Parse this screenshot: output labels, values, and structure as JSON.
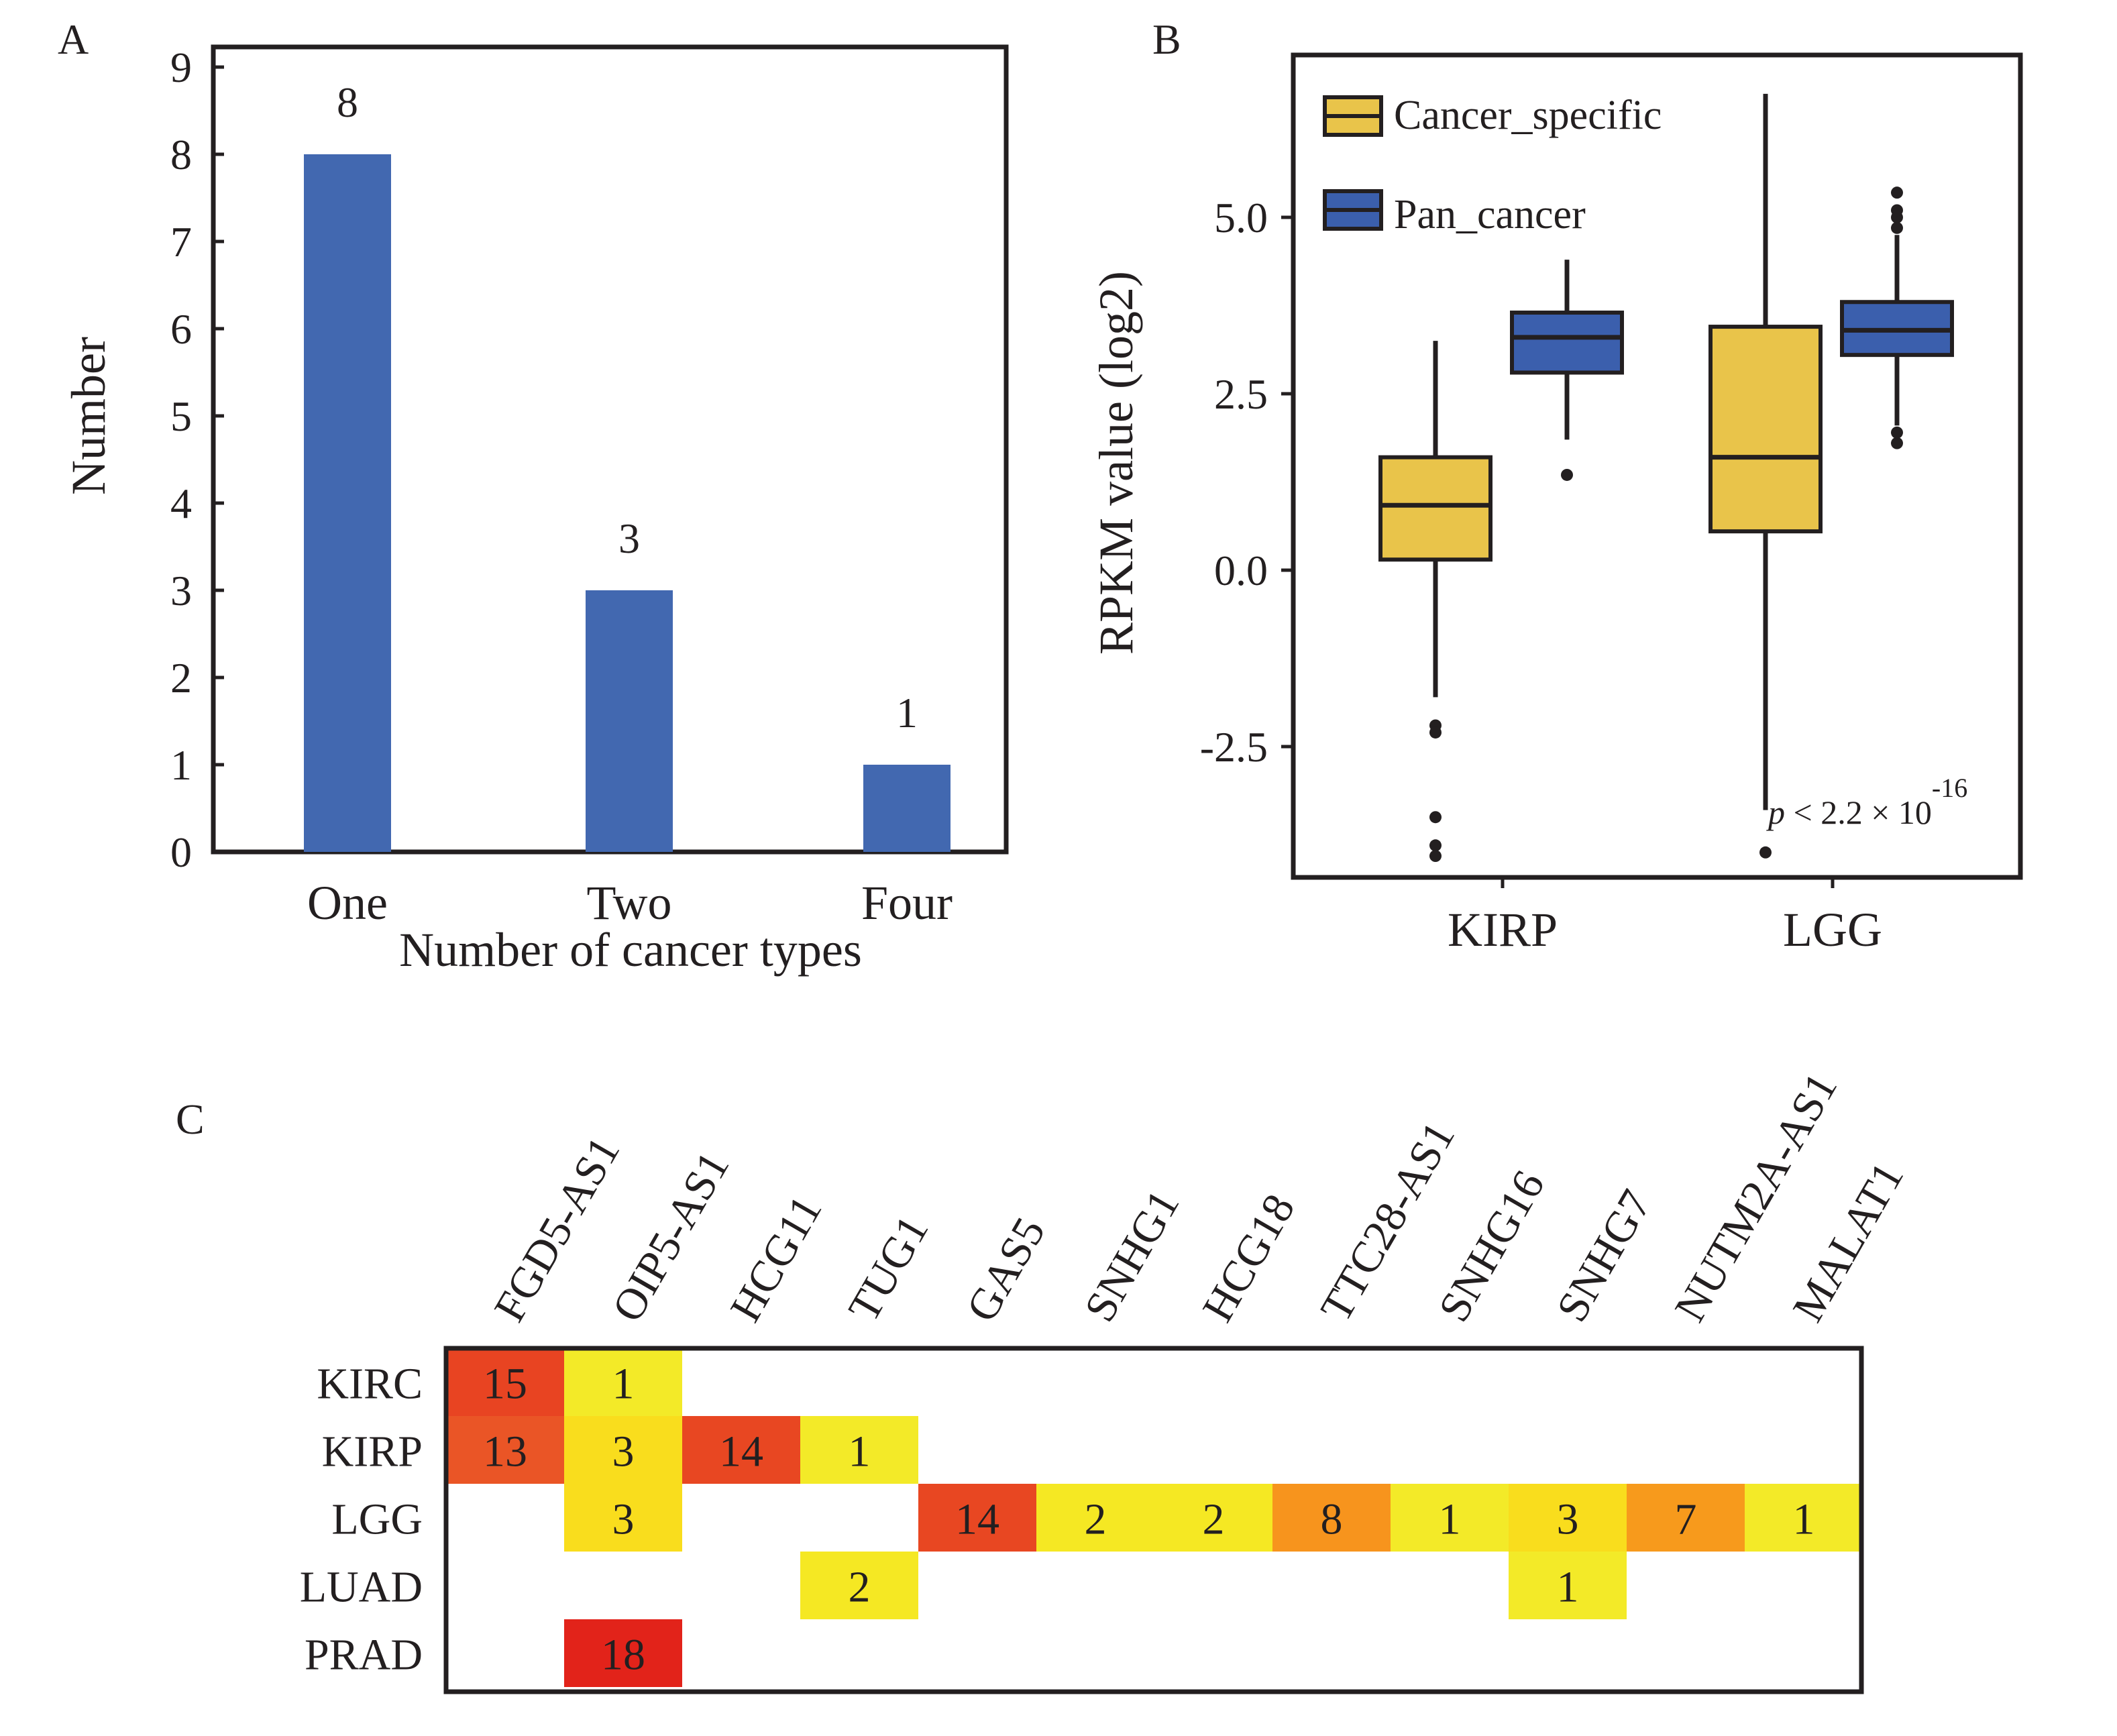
{
  "colors": {
    "bar": "#4268b0",
    "cancer_specific": "#e9c44a",
    "pan_cancer": "#3b5fad",
    "frame": "#231f20",
    "heat_low": "#f5eb1f",
    "heat_mid": "#f7941d",
    "heat_high": "#e2231a"
  },
  "chart_data": [
    {
      "panel": "A",
      "type": "bar",
      "categories": [
        "One",
        "Two",
        "Four"
      ],
      "values": [
        8,
        3,
        1
      ],
      "value_labels": [
        "8",
        "3",
        "1"
      ],
      "xlabel": "Number of cancer types",
      "ylabel": "Number",
      "ylim": [
        0,
        9
      ],
      "yticks": [
        "0",
        "1",
        "2",
        "3",
        "4",
        "5",
        "6",
        "7",
        "8",
        "9"
      ]
    },
    {
      "panel": "B",
      "type": "box",
      "groups": [
        "KIRP",
        "LGG"
      ],
      "series": [
        {
          "name": "Cancer_specific",
          "boxes": [
            {
              "group": "KIRP",
              "whisker_low": -1.8,
              "q1": 0.15,
              "median": 0.92,
              "q3": 1.6,
              "whisker_high": 3.25,
              "outliers": [
                -2.2,
                -2.3,
                -3.5,
                -3.9,
                -4.05
              ]
            },
            {
              "group": "LGG",
              "whisker_low": -3.4,
              "q1": 0.55,
              "median": 1.6,
              "q3": 3.45,
              "whisker_high": 6.75,
              "outliers": [
                -4.0
              ]
            }
          ]
        },
        {
          "name": "Pan_cancer",
          "boxes": [
            {
              "group": "KIRP",
              "whisker_low": 1.85,
              "q1": 2.8,
              "median": 3.3,
              "q3": 3.65,
              "whisker_high": 4.4,
              "outliers": [
                1.35
              ]
            },
            {
              "group": "LGG",
              "whisker_low": 2.05,
              "q1": 3.05,
              "median": 3.4,
              "q3": 3.8,
              "whisker_high": 4.75,
              "outliers": [
                1.8,
                1.95,
                4.85,
                5.0,
                5.1,
                5.35
              ]
            }
          ]
        }
      ],
      "ylabel": "RPKM value (log2)",
      "ylim": [
        -4.3,
        7.4
      ],
      "yticks": [
        "-2.5",
        "0.0",
        "2.5",
        "5.0"
      ],
      "legend": "top-left",
      "annotation": {
        "p": "p",
        "rest": " < 2.2 × 10",
        "exp": "-16"
      }
    },
    {
      "panel": "C",
      "type": "heatmap",
      "columns": [
        "FGD5-AS1",
        "OIP5-AS1",
        "HCG11",
        "TUG1",
        "GAS5",
        "SNHG1",
        "HCG18",
        "TTC28-AS1",
        "SNHG16",
        "SNHG7",
        "NUTM2A-AS1",
        "MALAT1"
      ],
      "rows": [
        "KIRC",
        "KIRP",
        "LGG",
        "LUAD",
        "PRAD"
      ],
      "values": [
        [
          15,
          1,
          null,
          null,
          null,
          null,
          null,
          null,
          null,
          null,
          null,
          null
        ],
        [
          13,
          3,
          14,
          1,
          null,
          null,
          null,
          null,
          null,
          null,
          null,
          null
        ],
        [
          null,
          3,
          null,
          null,
          14,
          2,
          2,
          8,
          1,
          3,
          7,
          1
        ],
        [
          null,
          null,
          null,
          2,
          null,
          null,
          null,
          null,
          null,
          1,
          null,
          null
        ],
        [
          null,
          18,
          null,
          null,
          null,
          null,
          null,
          null,
          null,
          null,
          null,
          null
        ]
      ],
      "cell_colors": [
        [
          "#e84422",
          "#f3ea28",
          null,
          null,
          null,
          null,
          null,
          null,
          null,
          null,
          null,
          null
        ],
        [
          "#ea5526",
          "#f9dd1d",
          "#e84722",
          "#f3ea28",
          null,
          null,
          null,
          null,
          null,
          null,
          null,
          null
        ],
        [
          null,
          "#f9dd1d",
          null,
          null,
          "#e84722",
          "#f5e823",
          "#f5e823",
          "#f7941d",
          "#f3ea28",
          "#f9dd1d",
          "#f79a1c",
          "#f3ea28"
        ],
        [
          null,
          null,
          null,
          "#f5e823",
          null,
          null,
          null,
          null,
          null,
          "#f3ea28",
          null,
          null
        ],
        [
          null,
          "#e2231a",
          null,
          null,
          null,
          null,
          null,
          null,
          null,
          null,
          null,
          null
        ]
      ]
    }
  ],
  "panel_labels": {
    "a": "A",
    "b": "B",
    "c": "C"
  }
}
